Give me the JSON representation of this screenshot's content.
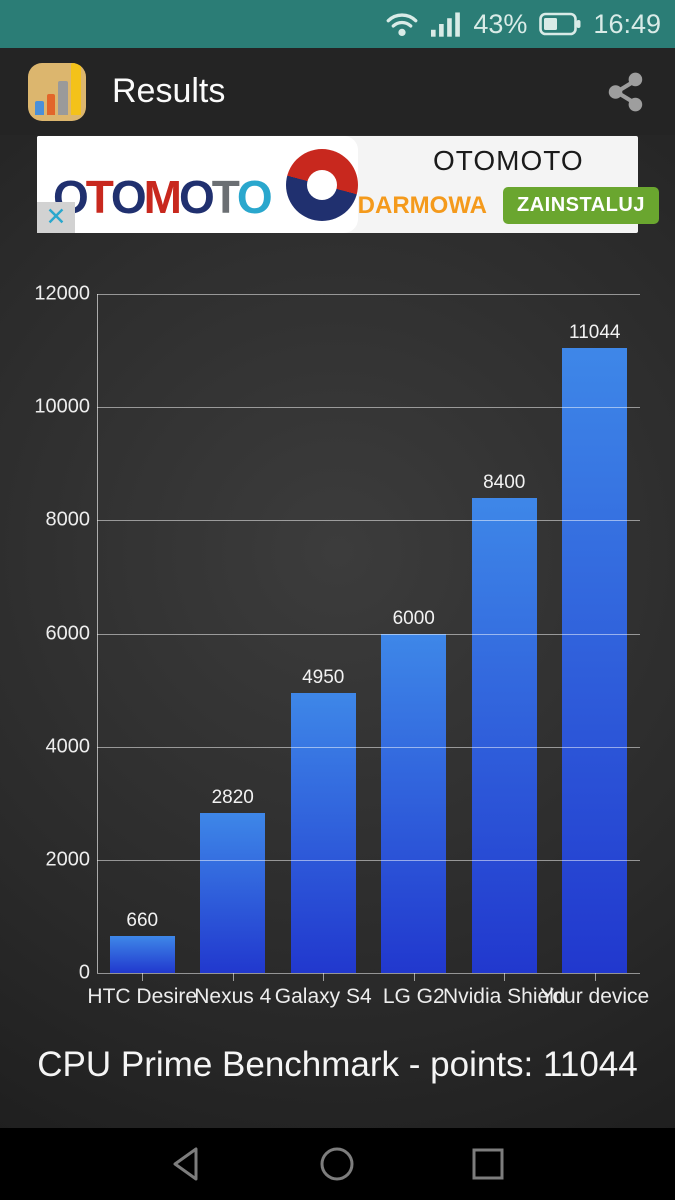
{
  "status_bar": {
    "battery_percent": "43%",
    "time": "16:49"
  },
  "header": {
    "app_title": "Results"
  },
  "ad": {
    "logo_letters": [
      {
        "ch": "O",
        "color": "#20306f"
      },
      {
        "ch": "T",
        "color": "#c8281e"
      },
      {
        "ch": "O",
        "color": "#20306f"
      },
      {
        "ch": "M",
        "color": "#c8281e"
      },
      {
        "ch": "O",
        "color": "#20306f"
      },
      {
        "ch": "T",
        "color": "#6b6f73"
      },
      {
        "ch": "O",
        "color": "#2aa7cd"
      }
    ],
    "app_name": "OTOMOTO",
    "price_label": "DARMOWA",
    "install_label": "ZAINSTALUJ",
    "close_label": "✕"
  },
  "chart_data": {
    "type": "bar",
    "categories": [
      "HTC Desire",
      "Nexus 4",
      "Galaxy S4",
      "LG G2",
      "Nvidia Shield",
      "Your device"
    ],
    "values": [
      660,
      2820,
      4950,
      6000,
      8400,
      11044
    ],
    "title": "CPU Prime Benchmark - points: 11044",
    "xlabel": "",
    "ylabel": "",
    "ylim": [
      0,
      12000
    ],
    "ytick_interval": 2000,
    "grid": true,
    "legend": false,
    "bar_color_top": "#3e87e8",
    "bar_color_bottom": "#2138ce"
  },
  "caption": "CPU Prime Benchmark - points: 11044",
  "colors": {
    "status_bar_teal": "#2b7d76",
    "install_green": "#6aa62f",
    "price_orange": "#f49a1c",
    "close_x_teal": "#2aa7cd"
  }
}
